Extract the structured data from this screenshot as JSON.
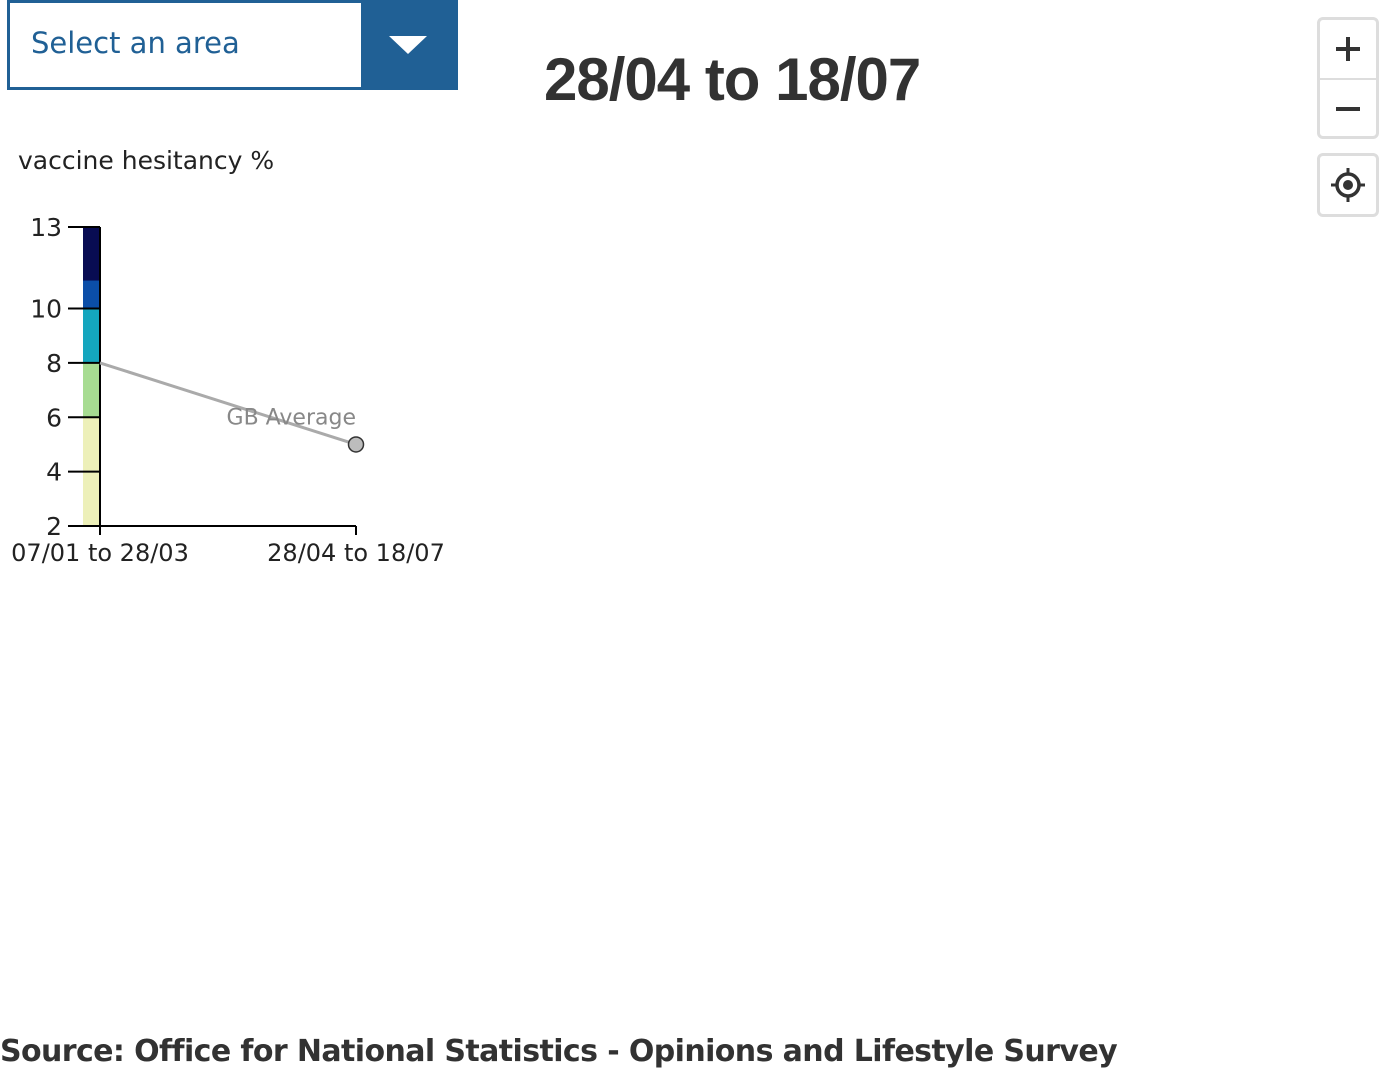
{
  "area_select": {
    "label": "Select an area"
  },
  "period_title": "28/04 to 18/07",
  "map_controls": {
    "zoom_in_icon": "plus-icon",
    "zoom_out_icon": "minus-icon",
    "locate_icon": "locate-crosshair-icon"
  },
  "chart_data": {
    "type": "line",
    "title": "vaccine hesitancy %",
    "x": [
      "07/01 to 28/03",
      "28/04 to 18/07"
    ],
    "y_ticks": [
      2,
      4,
      6,
      8,
      10,
      13
    ],
    "ylim": [
      2,
      13
    ],
    "series": [
      {
        "name": "GB Average",
        "values": [
          8,
          5
        ],
        "color": "#aaaaaa"
      }
    ],
    "color_scale": [
      {
        "from": 2,
        "to": 6,
        "color": "#edf0b9"
      },
      {
        "from": 6,
        "to": 8,
        "color": "#a7dc92"
      },
      {
        "from": 8,
        "to": 10,
        "color": "#14a6be"
      },
      {
        "from": 10,
        "to": 13,
        "color": "#0b4ea8"
      },
      {
        "from": 13,
        "to": 13,
        "color": "#080c53"
      }
    ],
    "grid": false,
    "legend": "none"
  },
  "source_text": "Source: Office for National Statistics - Opinions and Lifestyle Survey",
  "colors": {
    "accent": "#206095",
    "title": "#323232"
  }
}
